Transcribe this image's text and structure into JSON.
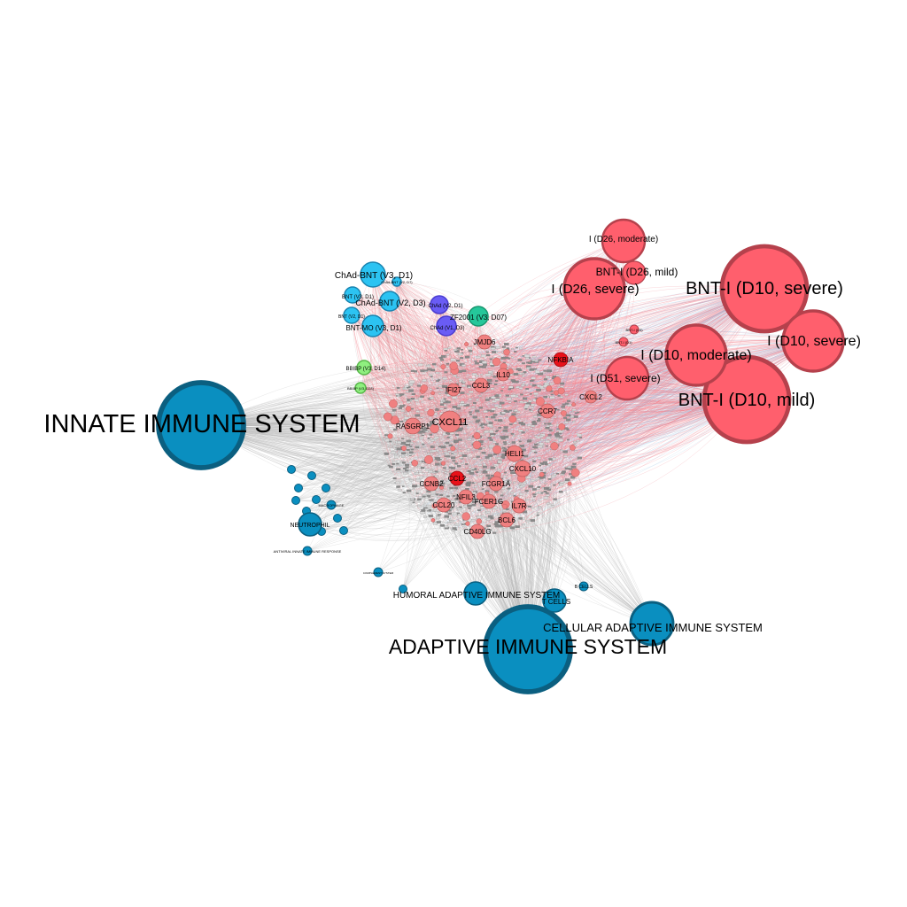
{
  "colors": {
    "immune": "#0a8fc0",
    "immune_stroke": "#0b5f80",
    "infection": "#ff5f6d",
    "infection_stroke": "#b5414c",
    "gene": "#f08080",
    "gene_stroke": "#c06060",
    "gene_hi": "#e8121a",
    "vaccine_cyan": "#2cc3f2",
    "vaccine_cyan_stroke": "#1a84b0",
    "vaccine_purple": "#6a5cf5",
    "vaccine_teal": "#25c79a",
    "vaccine_green": "#8fef7f",
    "edge_gray": "#b4b4b4",
    "edge_red": "#f07a85",
    "edge_blue": "#9ec7e6"
  },
  "immune_nodes": [
    {
      "label": "INNATE IMMUNE SYSTEM",
      "size": "xl"
    },
    {
      "label": "ADAPTIVE IMMUNE SYSTEM",
      "size": "xl"
    },
    {
      "label": "CELLULAR ADAPTIVE IMMUNE SYSTEM",
      "size": "m"
    },
    {
      "label": "HUMORAL ADAPTIVE IMMUNE SYSTEM",
      "size": "s"
    },
    {
      "label": "T CELLS",
      "size": "s"
    },
    {
      "label": "B CELLS",
      "size": "xs"
    },
    {
      "label": "NEUTROPHIL",
      "size": "s"
    },
    {
      "label": "MACROPHAGE",
      "size": "xs"
    },
    {
      "label": "ANTIVIRAL INNATE IMMUNE RESPONSE",
      "size": "xs"
    },
    {
      "label": "COMPLEMENT SYSTEM",
      "size": "xs"
    }
  ],
  "infection_nodes": [
    {
      "label": "BNT-I (D10, severe)",
      "size": "xl"
    },
    {
      "label": "BNT-I (D10, mild)",
      "size": "xl"
    },
    {
      "label": "I (D10, severe)",
      "size": "l"
    },
    {
      "label": "I (D10, moderate)",
      "size": "l"
    },
    {
      "label": "I (D26, severe)",
      "size": "l"
    },
    {
      "label": "I (D51, severe)",
      "size": "m"
    },
    {
      "label": "BNT-I (D26, mild)",
      "size": "s"
    },
    {
      "label": "I (D26, moderate)",
      "size": "m"
    },
    {
      "label": "BNT-I (D1)",
      "size": "xs"
    },
    {
      "label": "BNT-I (D3)",
      "size": "xs"
    }
  ],
  "vaccine_nodes": [
    {
      "label": "ChAd-BNT (V3, D1)",
      "color": "cyan"
    },
    {
      "label": "ChAd-BNT (V2, D3)",
      "color": "cyan"
    },
    {
      "label": "ChAd-BNT (V2, D7)",
      "color": "cyan"
    },
    {
      "label": "BNT (V3, D1)",
      "color": "cyan"
    },
    {
      "label": "BNT (V2, D1)",
      "color": "cyan"
    },
    {
      "label": "BNT-MO (V3, D1)",
      "color": "cyan"
    },
    {
      "label": "ChAd (V2, D1)",
      "color": "purple"
    },
    {
      "label": "ChAd (V1, D3)",
      "color": "purple"
    },
    {
      "label": "ZF2001 (V3, D07)",
      "color": "teal"
    },
    {
      "label": "BBIBP (V3, D14)",
      "color": "green"
    },
    {
      "label": "BBIBP (V3, D28)",
      "color": "green"
    }
  ],
  "gene_nodes": [
    {
      "label": "CXCL11",
      "highlight": false
    },
    {
      "label": "RASGRP1",
      "highlight": false
    },
    {
      "label": "IFI27",
      "highlight": false
    },
    {
      "label": "CCL3",
      "highlight": false
    },
    {
      "label": "IL10",
      "highlight": false
    },
    {
      "label": "JMJD6",
      "highlight": false
    },
    {
      "label": "NFKBIA",
      "highlight": true
    },
    {
      "label": "CXCL2",
      "highlight": false
    },
    {
      "label": "CCR7",
      "highlight": false
    },
    {
      "label": "HELI1",
      "highlight": false
    },
    {
      "label": "CXCL10",
      "highlight": false
    },
    {
      "label": "CCL2",
      "highlight": true
    },
    {
      "label": "CCNB2",
      "highlight": false
    },
    {
      "label": "FCGR1A",
      "highlight": false
    },
    {
      "label": "NFIL3",
      "highlight": false
    },
    {
      "label": "FCER1G",
      "highlight": false
    },
    {
      "label": "IL7R",
      "highlight": false
    },
    {
      "label": "CCL20",
      "highlight": false
    },
    {
      "label": "BCL6",
      "highlight": false
    },
    {
      "label": "CD40LG",
      "highlight": false
    }
  ]
}
